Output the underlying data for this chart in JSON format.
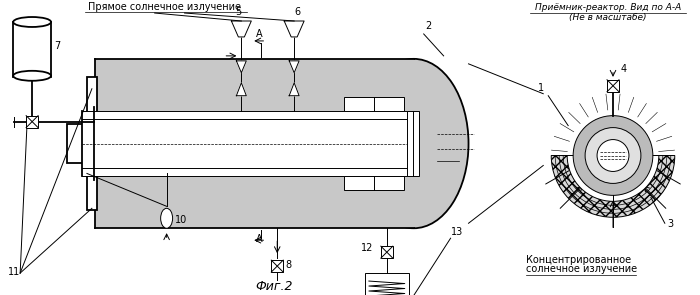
{
  "title": "Фиг.2",
  "bg_color": "#ffffff",
  "text_color": "#000000",
  "label_top_right_line1": "Приёмник-реактор. Вид по А-А",
  "label_top_right_line2": "(Не в масштабе)",
  "label_top_left": "Прямое солнечное излучение",
  "label_bottom_right_line1": "Концентрированное",
  "label_bottom_right_line2": "солнечное излучение"
}
